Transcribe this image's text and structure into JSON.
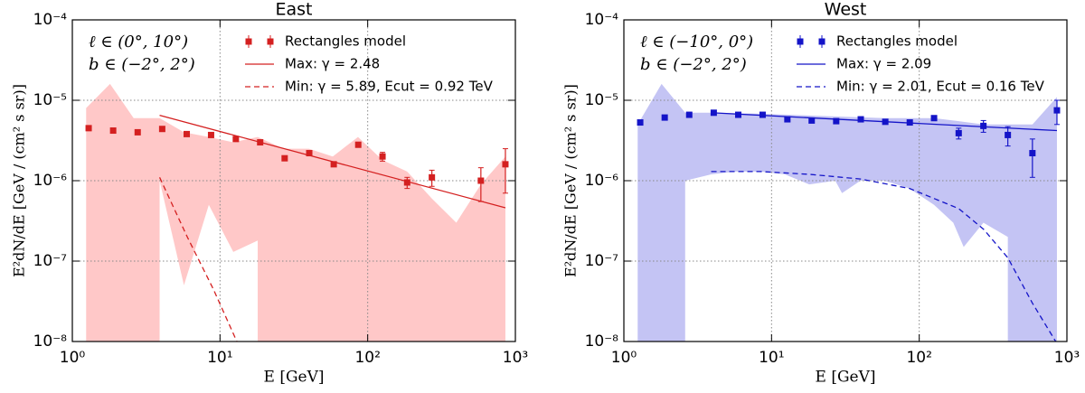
{
  "chart_data": [
    {
      "type": "scatter",
      "title": "East",
      "xlabel": "E [GeV]",
      "ylabel": "E²dN/dE [GeV / (cm² s sr)]",
      "annotations": [
        "ℓ ∈ (0°, 10°)",
        "b ∈ (−2°, 2°)"
      ],
      "xscale": "log",
      "yscale": "log",
      "xlim": [
        1,
        1000
      ],
      "ylim": [
        1e-08,
        0.0001
      ],
      "xticks": [
        {
          "value": 1,
          "label": "10⁰"
        },
        {
          "value": 10,
          "label": "10¹"
        },
        {
          "value": 100,
          "label": "10²"
        },
        {
          "value": 1000,
          "label": "10³"
        }
      ],
      "yticks": [
        {
          "value": 1e-08,
          "label": "10⁻⁸"
        },
        {
          "value": 1e-07,
          "label": "10⁻⁷"
        },
        {
          "value": 1e-06,
          "label": "10⁻⁶"
        },
        {
          "value": 1e-05,
          "label": "10⁻⁵"
        },
        {
          "value": 0.0001,
          "label": "10⁻⁴"
        }
      ],
      "grid": true,
      "legend": "upper right",
      "band": {
        "color": "#ffc8c8",
        "upper": {
          "x": [
            1.24,
            1.8,
            2.6,
            3.9,
            5.7,
            8.4,
            12.3,
            18,
            27,
            40,
            58,
            86,
            126,
            185,
            272,
            398,
            584,
            856
          ],
          "values": [
            8e-06,
            1.6e-05,
            6e-06,
            6e-06,
            4e-06,
            3.5e-06,
            3e-06,
            3.5e-06,
            2.5e-06,
            2.5e-06,
            2e-06,
            3.5e-06,
            1.8e-06,
            1.3e-06,
            6e-07,
            3e-07,
            9e-07,
            2e-06
          ]
        },
        "lower": {
          "x": [
            1.24,
            3.9,
            3.9,
            5.7,
            8.4,
            12.3,
            18,
            18,
            856
          ],
          "values": [
            1e-08,
            1e-08,
            1e-06,
            5e-08,
            5e-07,
            1.3e-07,
            1.8e-07,
            1e-08,
            1e-08
          ]
        }
      },
      "series": [
        {
          "name": "Rectangles model",
          "kind": "marker",
          "color": "#d42020",
          "x": [
            1.29,
            1.89,
            2.77,
            4.06,
            5.95,
            8.7,
            12.8,
            18.7,
            27.4,
            40.2,
            58.9,
            86.3,
            126,
            185,
            272,
            584,
            856
          ],
          "values": [
            4.5e-06,
            4.2e-06,
            4e-06,
            4.4e-06,
            3.8e-06,
            3.7e-06,
            3.3e-06,
            3e-06,
            1.9e-06,
            2.2e-06,
            1.6e-06,
            2.8e-06,
            2e-06,
            9.5e-07,
            1.1e-06,
            1e-06,
            1.6e-06
          ],
          "errors": [
            1.5e-07,
            1.5e-07,
            1.5e-07,
            1.5e-07,
            1.5e-07,
            1.5e-07,
            1.5e-07,
            1.5e-07,
            1e-07,
            1e-07,
            1e-07,
            2e-07,
            2.5e-07,
            1.5e-07,
            2.5e-07,
            4.5e-07,
            9e-07
          ]
        },
        {
          "name": "Max: γ = 2.48",
          "kind": "line",
          "style": "solid",
          "color": "#d42020",
          "x": [
            3.9,
            856
          ],
          "values": [
            6.5e-06,
            4.6e-07
          ]
        },
        {
          "name": "Min: γ = 5.89, Ecut = 0.92 TeV",
          "kind": "line",
          "style": "dashed",
          "color": "#d42020",
          "x": [
            3.9,
            6,
            9,
            13
          ],
          "values": [
            1.1e-06,
            2e-07,
            4.5e-08,
            1e-08
          ]
        }
      ]
    },
    {
      "type": "scatter",
      "title": "West",
      "xlabel": "E [GeV]",
      "ylabel": "E²dN/dE [GeV / (cm² s sr)]",
      "annotations": [
        "ℓ ∈ (−10°, 0°)",
        "b ∈ (−2°, 2°)"
      ],
      "xscale": "log",
      "yscale": "log",
      "xlim": [
        1,
        1000
      ],
      "ylim": [
        1e-08,
        0.0001
      ],
      "xticks": [
        {
          "value": 1,
          "label": "10⁰"
        },
        {
          "value": 10,
          "label": "10¹"
        },
        {
          "value": 100,
          "label": "10²"
        },
        {
          "value": 1000,
          "label": "10³"
        }
      ],
      "yticks": [
        {
          "value": 1e-08,
          "label": "10⁻⁸"
        },
        {
          "value": 1e-07,
          "label": "10⁻⁷"
        },
        {
          "value": 1e-06,
          "label": "10⁻⁶"
        },
        {
          "value": 1e-05,
          "label": "10⁻⁵"
        },
        {
          "value": 0.0001,
          "label": "10⁻⁴"
        }
      ],
      "grid": true,
      "legend": "upper right",
      "band": {
        "color": "#c4c4f4",
        "upper": {
          "x": [
            1.24,
            1.8,
            2.6,
            3.9,
            8.4,
            27,
            58,
            126,
            185,
            272,
            398,
            584,
            856
          ],
          "values": [
            5e-06,
            1.6e-05,
            7e-06,
            7e-06,
            6.8e-06,
            6.3e-06,
            6e-06,
            6e-06,
            5.5e-06,
            5e-06,
            5e-06,
            5e-06,
            1.1e-05
          ]
        },
        "lower": {
          "x": [
            1.24,
            2.6,
            2.6,
            3.9,
            5.7,
            8.4,
            12.3,
            18,
            27,
            30,
            40,
            58,
            86,
            126,
            170,
            200,
            272,
            398,
            398,
            856
          ],
          "values": [
            1e-08,
            1e-08,
            1e-06,
            1.2e-06,
            1.3e-06,
            1.3e-06,
            1.2e-06,
            9e-07,
            1e-06,
            7e-07,
            1e-06,
            1e-06,
            8e-07,
            5e-07,
            3e-07,
            1.5e-07,
            3e-07,
            2e-07,
            1e-08,
            1e-08
          ]
        }
      },
      "series": [
        {
          "name": "Rectangles model",
          "kind": "marker",
          "color": "#1414c8",
          "x": [
            1.29,
            1.89,
            2.77,
            4.06,
            5.95,
            8.7,
            12.8,
            18.7,
            27.4,
            40.2,
            58.9,
            86.3,
            126,
            185,
            272,
            398,
            584,
            856
          ],
          "values": [
            5.3e-06,
            6.1e-06,
            6.6e-06,
            7e-06,
            6.6e-06,
            6.6e-06,
            5.8e-06,
            5.6e-06,
            5.5e-06,
            5.8e-06,
            5.4e-06,
            5.3e-06,
            6e-06,
            3.9e-06,
            4.8e-06,
            3.7e-06,
            2.2e-06,
            7.5e-06
          ],
          "errors": [
            2e-07,
            2e-07,
            2e-07,
            2e-07,
            2e-07,
            2e-07,
            2e-07,
            2e-07,
            2e-07,
            2e-07,
            2e-07,
            2e-07,
            4e-07,
            6e-07,
            8e-07,
            1e-06,
            1.1e-06,
            2.5e-06
          ]
        },
        {
          "name": "Max: γ = 2.09",
          "kind": "line",
          "style": "solid",
          "color": "#1414c8",
          "x": [
            3.9,
            856
          ],
          "values": [
            7e-06,
            4.2e-06
          ]
        },
        {
          "name": "Min: γ = 2.01, Ecut = 0.16 TeV",
          "kind": "line",
          "style": "dashed",
          "color": "#1414c8",
          "x": [
            3.9,
            8.4,
            18,
            40,
            86,
            185,
            272,
            398,
            584,
            840
          ],
          "values": [
            1.3e-06,
            1.3e-06,
            1.2e-06,
            1.05e-06,
            8e-07,
            4.5e-07,
            2.5e-07,
            1.1e-07,
            3e-08,
            1e-08
          ]
        }
      ]
    }
  ]
}
